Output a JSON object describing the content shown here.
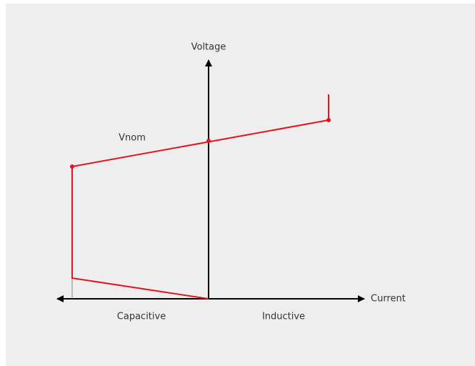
{
  "diagram": {
    "y_axis_label": "Voltage",
    "x_axis_label": "Current",
    "nominal_label": "Vnom",
    "left_region_label": "Capacitive",
    "right_region_label": "Inductive"
  }
}
